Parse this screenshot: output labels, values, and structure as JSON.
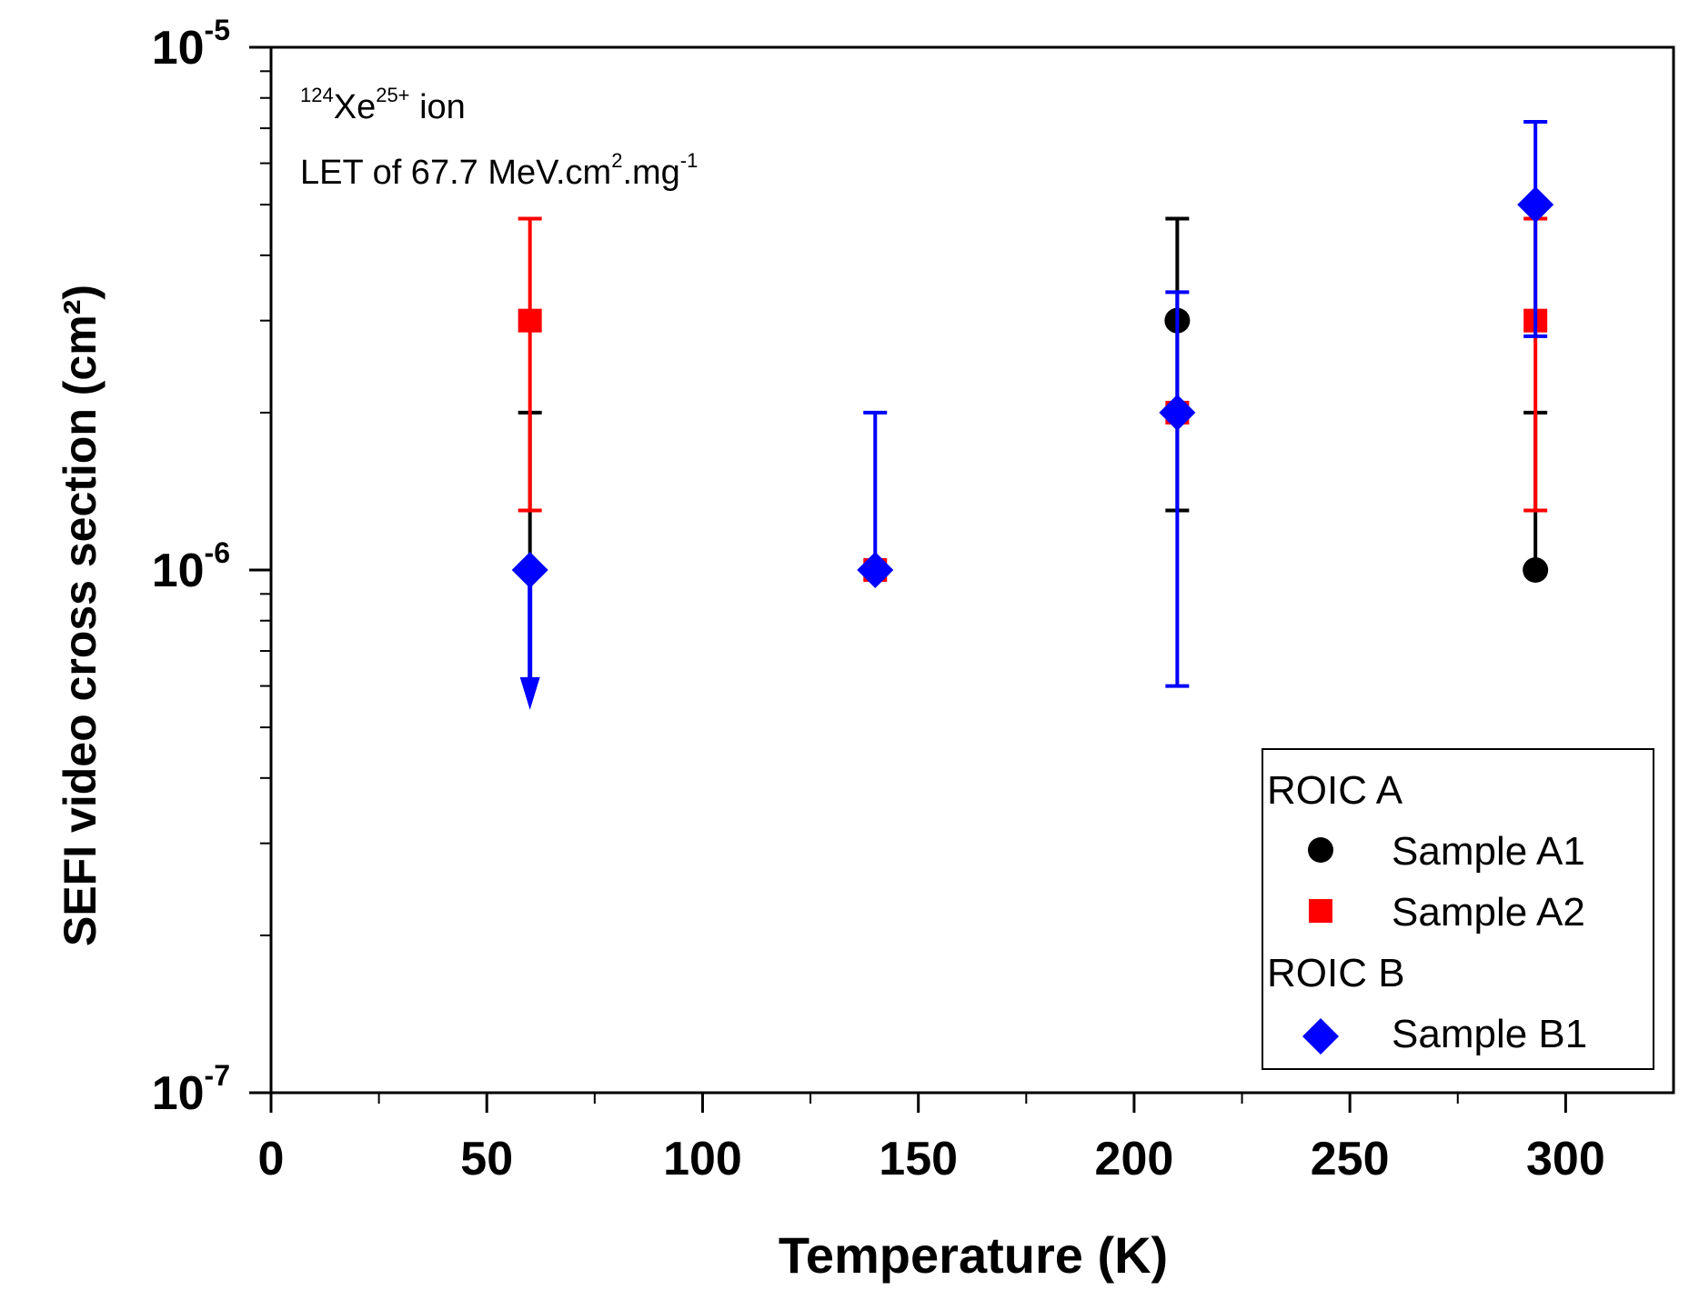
{
  "chart_data": {
    "type": "scatter",
    "xlabel": "Temperature (K)",
    "ylabel": "SEFI video cross section (cm²)",
    "xlim": [
      0,
      325
    ],
    "ylim": [
      1e-07,
      1e-05
    ],
    "y_scale": "log",
    "x_ticks": [
      0,
      50,
      100,
      150,
      200,
      250,
      300
    ],
    "y_ticks": [
      {
        "value": 1e-07,
        "base": "10",
        "exp": "-7"
      },
      {
        "value": 1e-06,
        "base": "10",
        "exp": "-6"
      },
      {
        "value": 1e-05,
        "base": "10",
        "exp": "-5"
      }
    ],
    "annotation": {
      "line1": {
        "mass": "124",
        "symbol": "Xe",
        "charge": "25+",
        "suffix": " ion"
      },
      "line2": {
        "prefix": "LET of 67.7 MeV.cm",
        "exp1": "2",
        "mid": ".mg",
        "exp2": "-1"
      }
    },
    "legend": {
      "position": "bottom-right",
      "groups": [
        {
          "heading": "ROIC A",
          "entries": [
            {
              "label": "Sample A1",
              "series": 0
            },
            {
              "label": "Sample A2",
              "series": 1
            }
          ]
        },
        {
          "heading": "ROIC B",
          "entries": [
            {
              "label": "Sample B1",
              "series": 2
            }
          ]
        }
      ]
    },
    "series": [
      {
        "name": "Sample A1",
        "marker": "circle",
        "color": "#000000",
        "points": [
          {
            "x": 60,
            "y": 1e-06,
            "lo": 1e-06,
            "hi": 2e-06
          },
          {
            "x": 210,
            "y": 3e-06,
            "lo": 1.3e-06,
            "hi": 4.7e-06
          },
          {
            "x": 293,
            "y": 1e-06,
            "lo": 1e-06,
            "hi": 2e-06
          }
        ]
      },
      {
        "name": "Sample A2",
        "marker": "square",
        "color": "#ff0000",
        "points": [
          {
            "x": 60,
            "y": 3e-06,
            "lo": 1.3e-06,
            "hi": 4.7e-06
          },
          {
            "x": 140,
            "y": 1e-06,
            "lo": 1e-06,
            "hi": 1e-06
          },
          {
            "x": 210,
            "y": 2e-06,
            "lo": 2e-06,
            "hi": 2e-06
          },
          {
            "x": 293,
            "y": 3e-06,
            "lo": 1.3e-06,
            "hi": 4.7e-06
          }
        ]
      },
      {
        "name": "Sample B1",
        "marker": "diamond",
        "color": "#0000ff",
        "points": [
          {
            "x": 60,
            "y": 1e-06,
            "lo": 5.4e-07,
            "hi": 1e-06,
            "upper_limit": true
          },
          {
            "x": 140,
            "y": 1e-06,
            "lo": 1e-06,
            "hi": 2e-06
          },
          {
            "x": 210,
            "y": 2e-06,
            "lo": 6e-07,
            "hi": 3.4e-06
          },
          {
            "x": 293,
            "y": 5e-06,
            "lo": 2.8e-06,
            "hi": 7.2e-06
          }
        ]
      }
    ]
  }
}
